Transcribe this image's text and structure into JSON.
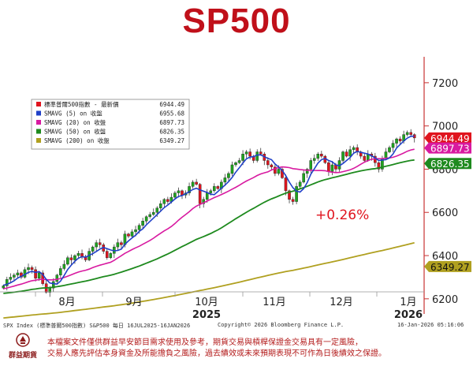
{
  "page": {
    "title": "SP500"
  },
  "colors": {
    "title": "#c0101a",
    "candle_up": "#1ea51e",
    "candle_down": "#e0141e",
    "sma5": "#2040c8",
    "sma20": "#d81aa0",
    "sma50": "#1e8a1e",
    "sma200": "#b0a020",
    "last_price": "#e0141e",
    "axis_line": "#c83232",
    "annotation": "#e0141e",
    "disclaimer": "#b31b1b"
  },
  "legend": {
    "items": [
      {
        "label": "標準普爾500指數 - 最新價",
        "value": "6944.49",
        "color": "#e0141e"
      },
      {
        "label": "SMAVG (5)  on 收盤",
        "value": "6955.68",
        "color": "#2040c8"
      },
      {
        "label": "SMAVG (20)  on 收盤",
        "value": "6897.73",
        "color": "#d81aa0"
      },
      {
        "label": "SMAVG (50)  on 收盤",
        "value": "6826.35",
        "color": "#1e8a1e"
      },
      {
        "label": "SMAVG (200)  on 收盤",
        "value": "6349.27",
        "color": "#b0a020"
      }
    ]
  },
  "chart_data": {
    "type": "candlestick",
    "title": "SP500",
    "x_range": [
      "2025-07-16",
      "2026-01-16"
    ],
    "x_tick_labels": [
      "8月",
      "9月",
      "10月",
      "11月",
      "12月",
      "1月"
    ],
    "x_year_labels": [
      "2025",
      "2026"
    ],
    "y_ticks": [
      6200,
      6400,
      6600,
      6800,
      7000,
      7200
    ],
    "ylim": [
      6130,
      7320
    ],
    "grid": false,
    "annotation": "+0.26%",
    "last_value_tags": [
      {
        "value": 6944.49,
        "label": "6944.49",
        "color": "#e0141e"
      },
      {
        "value": 6897.73,
        "label": "6897.73",
        "color": "#d81aa0"
      },
      {
        "value": 6826.35,
        "label": "6826.35",
        "color": "#1e8a1e"
      },
      {
        "value": 6349.27,
        "label": "6349.27",
        "color": "#b0a020"
      }
    ],
    "close": [
      6260,
      6290,
      6300,
      6310,
      6320,
      6300,
      6335,
      6345,
      6335,
      6295,
      6320,
      6270,
      6230,
      6250,
      6280,
      6310,
      6340,
      6360,
      6390,
      6380,
      6400,
      6410,
      6395,
      6380,
      6420,
      6440,
      6460,
      6450,
      6420,
      6390,
      6410,
      6440,
      6460,
      6450,
      6500,
      6490,
      6510,
      6520,
      6540,
      6560,
      6580,
      6590,
      6600,
      6620,
      6640,
      6660,
      6650,
      6670,
      6690,
      6700,
      6680,
      6690,
      6720,
      6740,
      6730,
      6640,
      6660,
      6690,
      6700,
      6720,
      6710,
      6740,
      6760,
      6780,
      6820,
      6830,
      6840,
      6870,
      6880,
      6860,
      6840,
      6880,
      6870,
      6840,
      6820,
      6810,
      6780,
      6800,
      6760,
      6700,
      6660,
      6650,
      6720,
      6740,
      6780,
      6800,
      6840,
      6850,
      6870,
      6860,
      6830,
      6790,
      6820,
      6800,
      6840,
      6880,
      6860,
      6890,
      6900,
      6880,
      6860,
      6840,
      6870,
      6860,
      6830,
      6800,
      6850,
      6880,
      6900,
      6920,
      6940,
      6930,
      6960,
      6970,
      6960,
      6944.49
    ],
    "series": [
      {
        "name": "標準普爾500指數 - 最新價",
        "last": 6944.49
      },
      {
        "name": "SMAVG (5)  on 收盤",
        "last": 6955.68
      },
      {
        "name": "SMAVG (20)  on 收盤",
        "last": 6897.73
      },
      {
        "name": "SMAVG (50)  on 收盤",
        "last": 6826.35
      },
      {
        "name": "SMAVG (200)  on 收盤",
        "last": 6349.27
      }
    ]
  },
  "footer": {
    "left": "SPX Index (標準普爾500指數) S&P500 每日 16JUL2025-16JAN2026",
    "center": "Copyright© 2026 Bloomberg Finance L.P.",
    "right": "16-Jan-2026 05:16:06"
  },
  "logo": {
    "name": "群益期貨"
  },
  "disclaimer": {
    "line1": "本檔案文件僅供群益早安節目需求使用及參考，期貨交易與槓桿保證金交易具有一定風險，",
    "line2": "交易人應先評估本身資金及所能擔負之風險，過去績效或未來預期表現不可作為日後績效之保證。"
  }
}
